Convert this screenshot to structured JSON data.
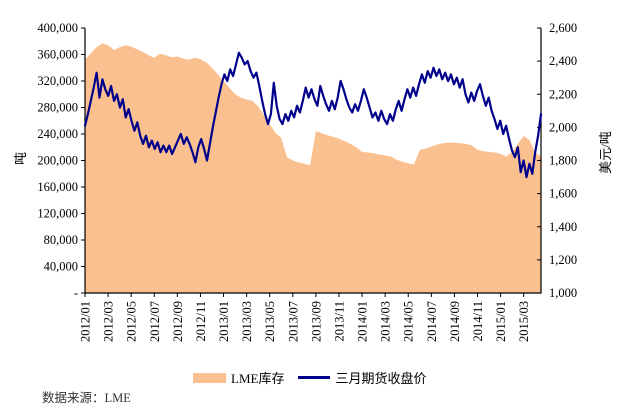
{
  "source_note": "数据来源：LME",
  "axes": {
    "left_title": "吨",
    "right_title": "美元/吨",
    "left_tick_labels": [
      "400,000",
      "360,000",
      "320,000",
      "280,000",
      "240,000",
      "200,000",
      "160,000",
      "120,000",
      "80,000",
      "40,000",
      "-"
    ],
    "right_tick_labels": [
      "2,600",
      "2,400",
      "2,200",
      "2,000",
      "1,800",
      "1,600",
      "1,400",
      "1,200",
      "1,000"
    ],
    "x_tick_labels": [
      "2012/01",
      "2012/03",
      "2012/05",
      "2012/07",
      "2012/09",
      "2012/11",
      "2013/01",
      "2013/03",
      "2013/05",
      "2013/07",
      "2013/09",
      "2013/11",
      "2014/01",
      "2014/03",
      "2014/05",
      "2014/07",
      "2014/09",
      "2014/11",
      "2015/01",
      "2015/03"
    ]
  },
  "legend": {
    "items": [
      {
        "label": "LME库存",
        "swatch": "area",
        "color": "#FAC090"
      },
      {
        "label": "三月期货收盘价",
        "swatch": "line",
        "color": "#00008C"
      }
    ]
  },
  "chart_data": {
    "type": "area+line combo",
    "x_range": {
      "start": "2012/01",
      "end": "2015/04",
      "months_total": 39.5,
      "tick_interval_months": 2
    },
    "left_axis": {
      "title": "吨",
      "min": 0,
      "max": 400000,
      "step": 40000
    },
    "right_axis": {
      "title": "美元/吨",
      "min": 1000,
      "max": 2600,
      "step": 200
    },
    "grid": false,
    "legend_position": "bottom",
    "series": [
      {
        "name": "LME库存",
        "type": "area",
        "axis": "left",
        "color": "#FAC090",
        "unit": "吨",
        "values": [
          352000,
          362000,
          371000,
          377000,
          374000,
          367000,
          371000,
          374000,
          372000,
          368000,
          364000,
          359000,
          355000,
          361000,
          359000,
          356000,
          357000,
          354000,
          352000,
          355000,
          353000,
          348000,
          340000,
          330000,
          320000,
          310000,
          300000,
          295000,
          292000,
          290000,
          282000,
          268000,
          255000,
          242000,
          234000,
          205000,
          200000,
          197000,
          195000,
          193000,
          244000,
          241000,
          238000,
          236000,
          233000,
          229000,
          225000,
          220000,
          213000,
          212000,
          211000,
          209000,
          208000,
          206000,
          201000,
          198000,
          196000,
          194000,
          216000,
          218000,
          221000,
          224000,
          226000,
          227000,
          227000,
          226000,
          225000,
          223000,
          216000,
          214000,
          213000,
          212000,
          210000,
          206000,
          213000,
          225000,
          237000,
          231000,
          212000,
          206000
        ]
      },
      {
        "name": "三月期货收盘价",
        "type": "line",
        "axis": "right",
        "color": "#00008C",
        "unit": "美元/吨",
        "values": [
          2010,
          2080,
          2160,
          2240,
          2330,
          2180,
          2290,
          2230,
          2190,
          2250,
          2160,
          2200,
          2120,
          2170,
          2060,
          2110,
          2040,
          1980,
          2030,
          1950,
          1900,
          1950,
          1880,
          1920,
          1870,
          1910,
          1850,
          1890,
          1850,
          1890,
          1840,
          1880,
          1920,
          1960,
          1900,
          1940,
          1900,
          1850,
          1790,
          1880,
          1930,
          1870,
          1800,
          1900,
          2000,
          2090,
          2180,
          2260,
          2320,
          2280,
          2350,
          2310,
          2380,
          2450,
          2420,
          2380,
          2400,
          2340,
          2300,
          2330,
          2250,
          2160,
          2080,
          2020,
          2080,
          2270,
          2130,
          2050,
          2020,
          2080,
          2040,
          2100,
          2060,
          2130,
          2090,
          2160,
          2240,
          2180,
          2230,
          2170,
          2130,
          2250,
          2190,
          2140,
          2100,
          2160,
          2110,
          2180,
          2280,
          2230,
          2170,
          2120,
          2090,
          2140,
          2100,
          2160,
          2230,
          2180,
          2120,
          2060,
          2090,
          2040,
          2100,
          2050,
          2020,
          2080,
          2040,
          2110,
          2160,
          2100,
          2170,
          2230,
          2180,
          2240,
          2190,
          2260,
          2320,
          2270,
          2340,
          2300,
          2360,
          2310,
          2350,
          2290,
          2330,
          2280,
          2320,
          2260,
          2300,
          2240,
          2290,
          2200,
          2150,
          2210,
          2160,
          2220,
          2260,
          2190,
          2130,
          2180,
          2100,
          2050,
          1990,
          2040,
          1960,
          2010,
          1930,
          1860,
          1820,
          1880,
          1730,
          1800,
          1700,
          1780,
          1720,
          1850,
          1950,
          2080
        ]
      }
    ]
  }
}
